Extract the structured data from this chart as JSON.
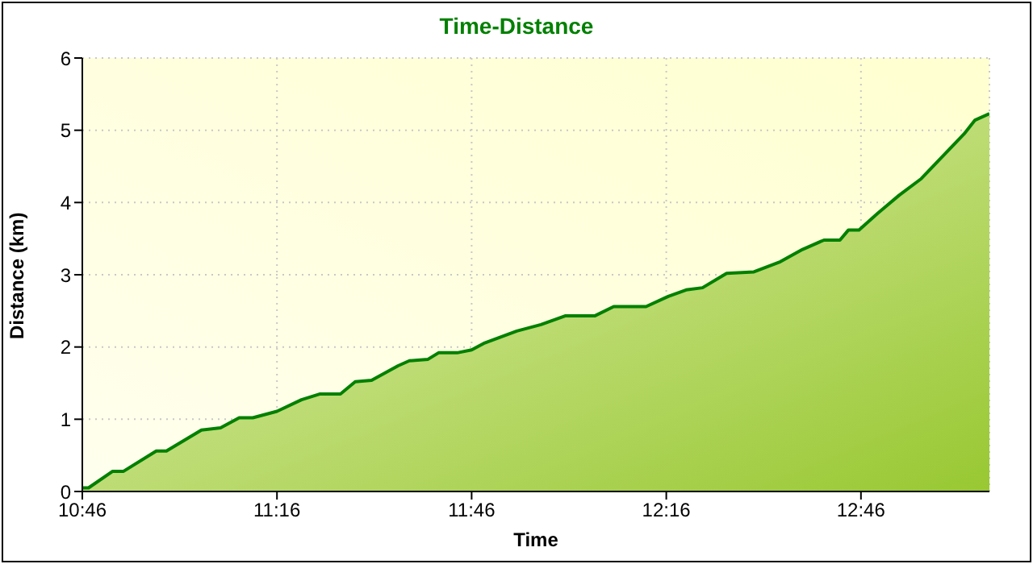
{
  "chart_data": {
    "type": "area",
    "title": "Time-Distance",
    "xlabel": "Time",
    "ylabel": "Distance (km)",
    "x": [
      10.767,
      10.783,
      10.845,
      10.873,
      10.957,
      10.983,
      11.073,
      11.122,
      11.17,
      11.205,
      11.267,
      11.33,
      11.378,
      11.43,
      11.468,
      11.51,
      11.578,
      11.607,
      11.655,
      11.682,
      11.73,
      11.767,
      11.798,
      11.883,
      11.945,
      12.007,
      12.083,
      12.132,
      12.215,
      12.272,
      12.318,
      12.36,
      12.422,
      12.492,
      12.56,
      12.617,
      12.672,
      12.713,
      12.735,
      12.762,
      12.81,
      12.865,
      12.922,
      12.977,
      13.032,
      13.06,
      13.097
    ],
    "series": [
      {
        "color": "#008000",
        "values": [
          0.05,
          0.05,
          0.28,
          0.28,
          0.56,
          0.56,
          0.85,
          0.88,
          1.02,
          1.02,
          1.11,
          1.27,
          1.35,
          1.35,
          1.52,
          1.54,
          1.74,
          1.81,
          1.83,
          1.92,
          1.92,
          1.96,
          2.05,
          2.22,
          2.31,
          2.43,
          2.43,
          2.56,
          2.56,
          2.7,
          2.79,
          2.82,
          3.02,
          3.04,
          3.18,
          3.35,
          3.48,
          3.48,
          3.62,
          3.62,
          3.85,
          4.1,
          4.33,
          4.64,
          4.95,
          5.14,
          5.23
        ]
      }
    ],
    "xlim": [
      10.767,
      13.097
    ],
    "xticks": [
      {
        "value": 10.767,
        "label": "10:46"
      },
      {
        "value": 11.267,
        "label": "11:16"
      },
      {
        "value": 11.767,
        "label": "11:46"
      },
      {
        "value": 12.267,
        "label": "12:16"
      },
      {
        "value": 12.767,
        "label": "12:46"
      }
    ],
    "ylim": [
      0,
      6
    ],
    "yticks": [
      0,
      1,
      2,
      3,
      4,
      5,
      6
    ],
    "grid": true
  }
}
